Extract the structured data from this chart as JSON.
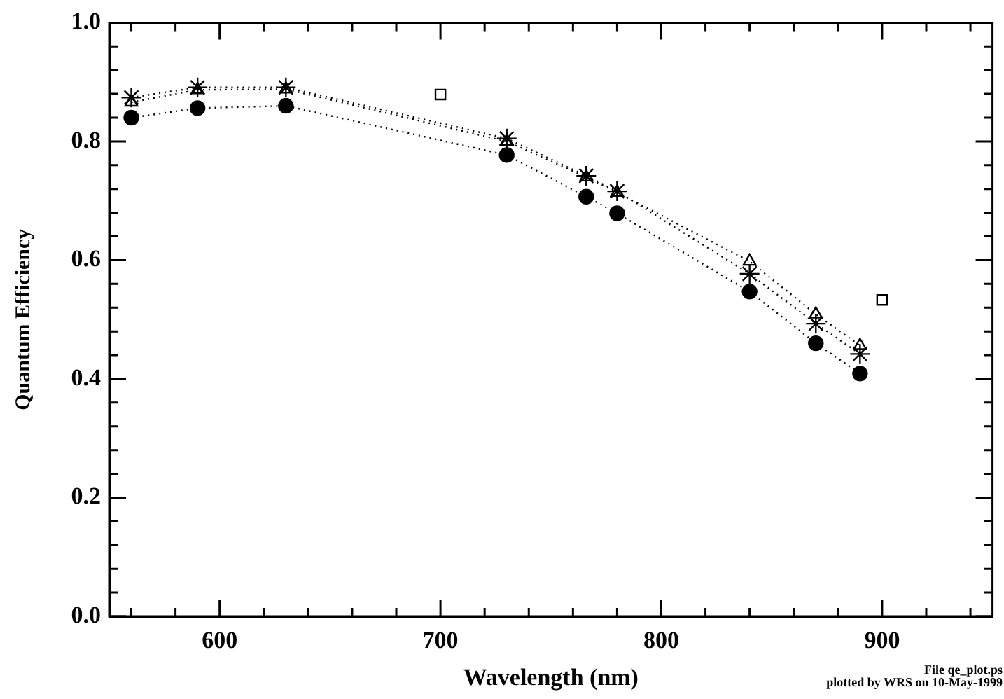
{
  "chart_data": {
    "type": "line",
    "xlabel": "Wavelength (nm)",
    "ylabel": "Quantum Efficiency",
    "annotations": [
      "File qe_plot.ps",
      "plotted by WRS on 10-May-1999"
    ],
    "xlim": [
      550,
      950
    ],
    "xticks": [
      600,
      700,
      800,
      900
    ],
    "ylim": [
      0,
      1.0
    ],
    "yticks": [
      {
        "value": 0,
        "label": "0.0"
      },
      {
        "value": 0.2,
        "label": "0.2"
      },
      {
        "value": 0.4,
        "label": "0.4"
      },
      {
        "value": 0.6,
        "label": "0.6"
      },
      {
        "value": 0.8,
        "label": "0.8"
      },
      {
        "value": 1.0,
        "label": "1.0"
      }
    ],
    "grid": false,
    "legend": false,
    "series": [
      {
        "color": "#000000",
        "marker": "circle",
        "line_style": "dotted",
        "x": [
          560,
          590,
          630,
          730,
          766,
          780,
          840,
          870,
          890
        ],
        "values": [
          0.84,
          0.856,
          0.86,
          0.777,
          0.707,
          0.679,
          0.547,
          0.46,
          0.409
        ]
      },
      {
        "color": "#000000",
        "marker": "triangle",
        "line_style": "dotted",
        "x": [
          560,
          590,
          630,
          730,
          766,
          780,
          840,
          870,
          890
        ],
        "values": [
          0.866,
          0.887,
          0.888,
          0.8,
          0.74,
          0.714,
          0.598,
          0.509,
          0.456
        ]
      },
      {
        "color": "#000000",
        "marker": "cross",
        "line_style": "dotted",
        "x": [
          560,
          590,
          630,
          730,
          766,
          780,
          840,
          870,
          890
        ],
        "values": [
          0.874,
          0.891,
          0.891,
          0.805,
          0.742,
          0.716,
          0.577,
          0.493,
          0.442
        ]
      },
      {
        "type": "scatter",
        "color": "#000000",
        "marker": "square",
        "x": [
          700,
          900
        ],
        "values": [
          0.879,
          0.533
        ]
      }
    ]
  }
}
